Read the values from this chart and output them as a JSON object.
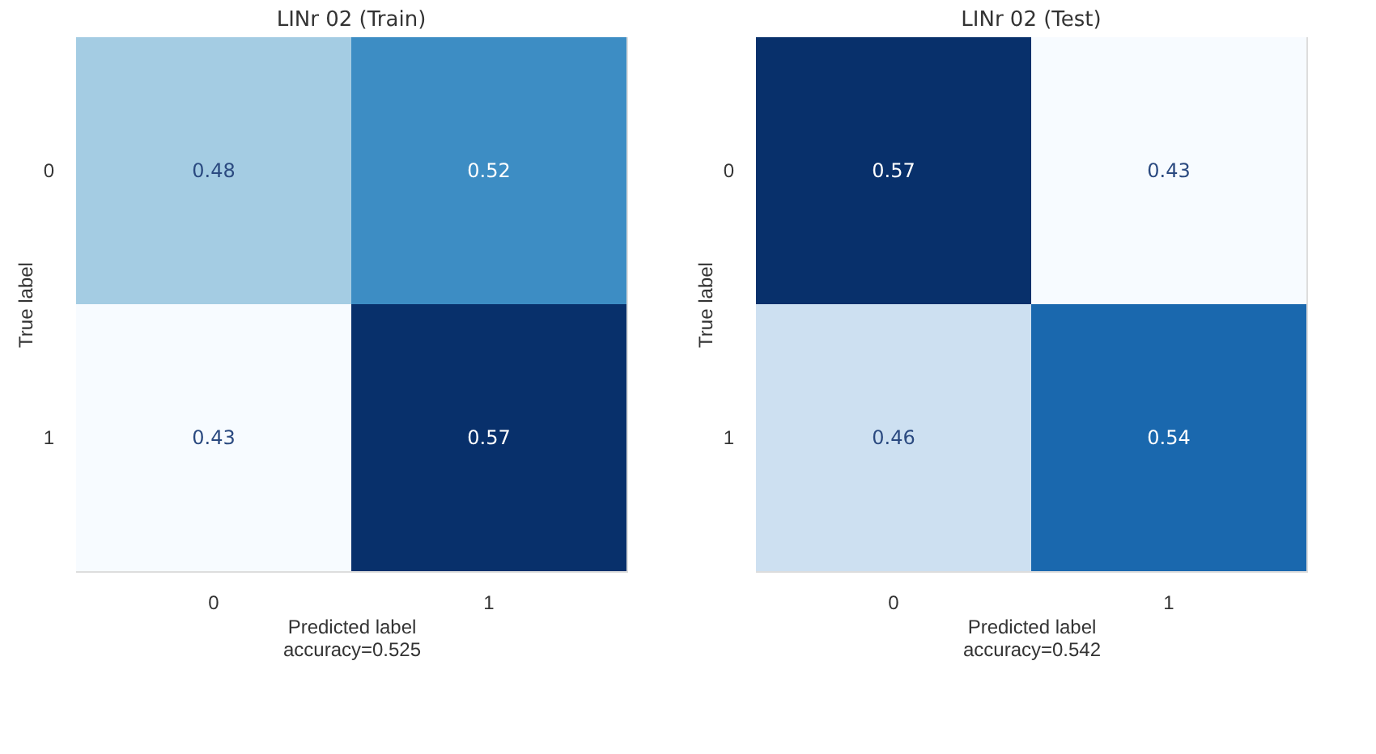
{
  "chart_data": [
    {
      "type": "heatmap",
      "title": "LINr 02 (Train)",
      "xlabel": "Predicted label",
      "ylabel": "True label",
      "annotations": [
        "accuracy=0.525"
      ],
      "categories": [
        "0",
        "1"
      ],
      "y_categories": [
        "0",
        "1"
      ],
      "cells": [
        [
          0.48,
          0.52
        ],
        [
          0.43,
          0.57
        ]
      ],
      "data_labels": true,
      "grid": false
    },
    {
      "type": "heatmap",
      "title": "LINr 02 (Test)",
      "xlabel": "Predicted label",
      "ylabel": "True label",
      "annotations": [
        "accuracy=0.542"
      ],
      "categories": [
        "0",
        "1"
      ],
      "y_categories": [
        "0",
        "1"
      ],
      "cells": [
        [
          0.57,
          0.43
        ],
        [
          0.46,
          0.54
        ]
      ],
      "data_labels": true,
      "grid": false
    }
  ]
}
